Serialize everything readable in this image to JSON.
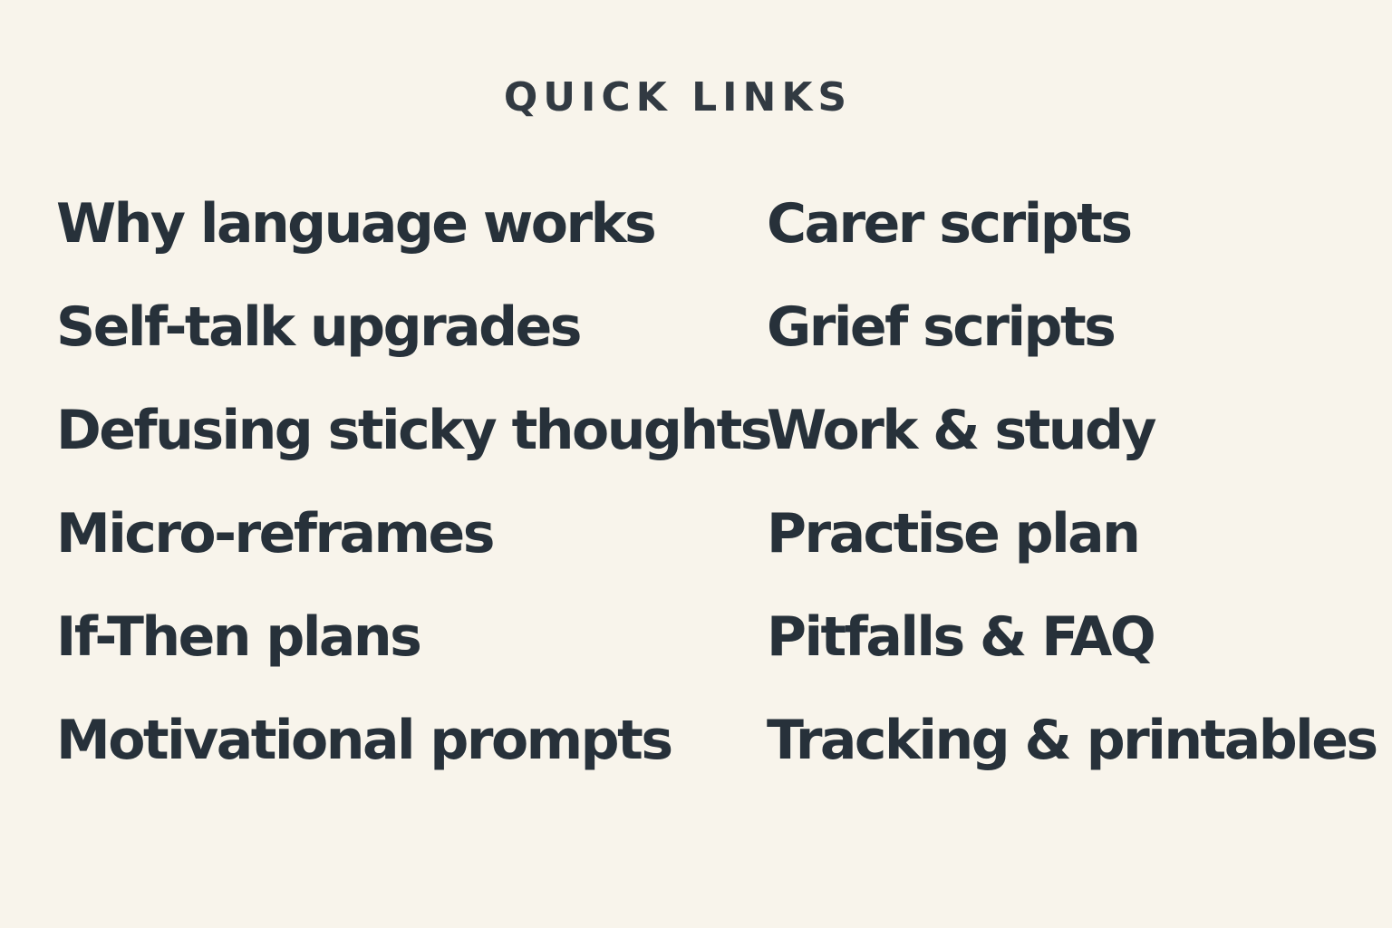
{
  "heading": "QUICK LINKS",
  "links": [
    "Why language works",
    "Carer scripts",
    "Self-talk upgrades",
    "Grief scripts",
    "Defusing sticky thoughts",
    "Work & study",
    "Micro-reframes",
    "Practise plan",
    "If-Then plans",
    "Pitfalls & FAQ",
    "Motivational prompts",
    "Tracking & printables"
  ],
  "colors": {
    "background": "#f8f4eb",
    "text": "#27313a"
  }
}
